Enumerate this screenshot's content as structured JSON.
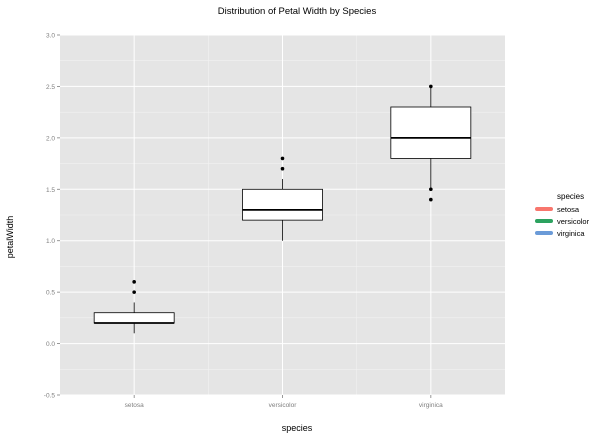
{
  "chart_data": {
    "type": "box",
    "title": "Distribution of Petal Width by Species",
    "xlabel": "species",
    "ylabel": "petalWidth",
    "ylim": [
      -0.5,
      3.0
    ],
    "yticks": [
      "-0.5",
      "0.0",
      "0.5",
      "1.0",
      "1.5",
      "2.0",
      "2.5",
      "3.0"
    ],
    "categories": [
      "setosa",
      "versicolor",
      "virginica"
    ],
    "boxes": [
      {
        "category": "setosa",
        "whisker_low": 0.1,
        "q1": 0.2,
        "median": 0.2,
        "q3": 0.3,
        "whisker_high": 0.4,
        "outliers": [
          0.5,
          0.6
        ]
      },
      {
        "category": "versicolor",
        "whisker_low": 1.0,
        "q1": 1.2,
        "median": 1.3,
        "q3": 1.5,
        "whisker_high": 1.6,
        "outliers": [
          1.7,
          1.8
        ]
      },
      {
        "category": "virginica",
        "whisker_low": 1.5,
        "q1": 1.8,
        "median": 2.0,
        "q3": 2.3,
        "whisker_high": 2.5,
        "outliers": [
          1.4,
          1.5,
          2.5
        ]
      }
    ],
    "grid": true,
    "legend": {
      "title": "species",
      "placement": "right",
      "items": [
        {
          "label": "setosa",
          "color": "#f8766d"
        },
        {
          "label": "versicolor",
          "color": "#2ca25f"
        },
        {
          "label": "virginica",
          "color": "#6b9bd8"
        }
      ]
    },
    "colors": {
      "panel": "#e5e5e5",
      "grid_major": "#ffffff",
      "grid_minor": "#f2f2f2",
      "box_fill": "#ffffff",
      "box_stroke": "#000000",
      "tick_label": "#7f7f7f"
    }
  }
}
